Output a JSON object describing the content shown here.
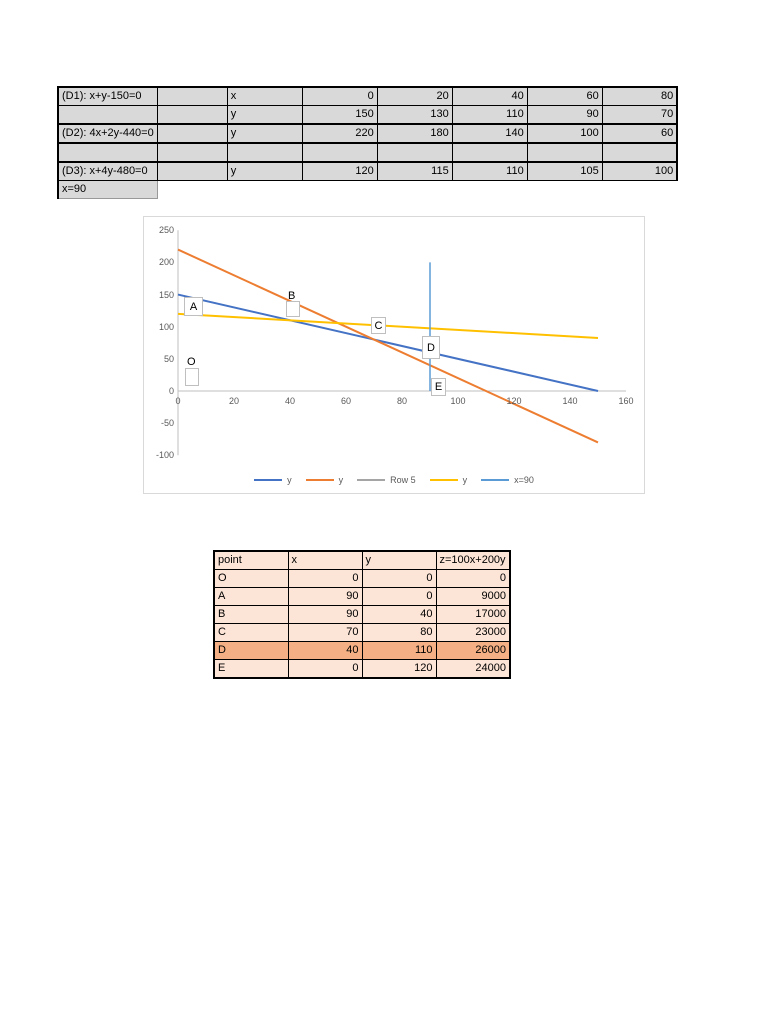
{
  "equations_table": {
    "rows": [
      {
        "label": "(D1): x+y-150=0",
        "var": "x",
        "values": [
          "0",
          "20",
          "40",
          "60",
          "80"
        ]
      },
      {
        "label": "",
        "var": "y",
        "values": [
          "150",
          "130",
          "110",
          "90",
          "70"
        ]
      },
      {
        "label": "(D2): 4x+2y-440=0",
        "var": "y",
        "values": [
          "220",
          "180",
          "140",
          "100",
          "60"
        ]
      },
      {
        "label": "",
        "var": "",
        "values": [
          "",
          "",
          "",
          "",
          ""
        ]
      },
      {
        "label": "(D3): x+4y-480=0",
        "var": "y",
        "values": [
          "120",
          "115",
          "110",
          "105",
          "100"
        ]
      }
    ],
    "footer": "x=90"
  },
  "chart_data": {
    "type": "line",
    "title": "",
    "xlabel": "",
    "ylabel": "",
    "xlim": [
      0,
      160
    ],
    "ylim": [
      -100,
      250
    ],
    "x_ticks": [
      0,
      20,
      40,
      60,
      80,
      100,
      120,
      140,
      160
    ],
    "y_ticks": [
      250,
      200,
      150,
      100,
      50,
      0,
      -50,
      -100
    ],
    "grid": false,
    "legend_position": "bottom",
    "series": [
      {
        "name": "y",
        "color": "#4472C4",
        "width": 2,
        "points": [
          [
            0,
            150
          ],
          [
            150,
            0
          ]
        ]
      },
      {
        "name": "y",
        "color": "#ED7D31",
        "width": 2,
        "points": [
          [
            0,
            220
          ],
          [
            150,
            -80
          ]
        ]
      },
      {
        "name": "Row 5",
        "color": "#A5A5A5",
        "width": 2,
        "points": []
      },
      {
        "name": "y",
        "color": "#FFC000",
        "width": 2,
        "points": [
          [
            0,
            120
          ],
          [
            150,
            82.5
          ]
        ]
      },
      {
        "name": "x=90",
        "color": "#5B9BD5",
        "width": 1.5,
        "points": [
          [
            90,
            0
          ],
          [
            90,
            200
          ]
        ]
      }
    ],
    "point_labels": [
      {
        "text": "A"
      },
      {
        "text": "B"
      },
      {
        "text": "C"
      },
      {
        "text": "D"
      },
      {
        "text": "E"
      },
      {
        "text": "O"
      }
    ],
    "axis_color": "#bfbfbf",
    "tick_color": "#595959"
  },
  "points_table": {
    "headers": [
      "point",
      "x",
      "y",
      "z=100x+200y"
    ],
    "rows": [
      [
        "O",
        "0",
        "0",
        "0"
      ],
      [
        "A",
        "90",
        "0",
        "9000"
      ],
      [
        "B",
        "90",
        "40",
        "17000"
      ],
      [
        "C",
        "70",
        "80",
        "23000"
      ],
      [
        "D",
        "40",
        "110",
        "26000"
      ],
      [
        "E",
        "0",
        "120",
        "24000"
      ]
    ],
    "highlight_row": 4,
    "colors": {
      "bg": "#fce4d6",
      "highlight": "#f4b084",
      "top_table_bg": "#d9d9d9"
    }
  }
}
